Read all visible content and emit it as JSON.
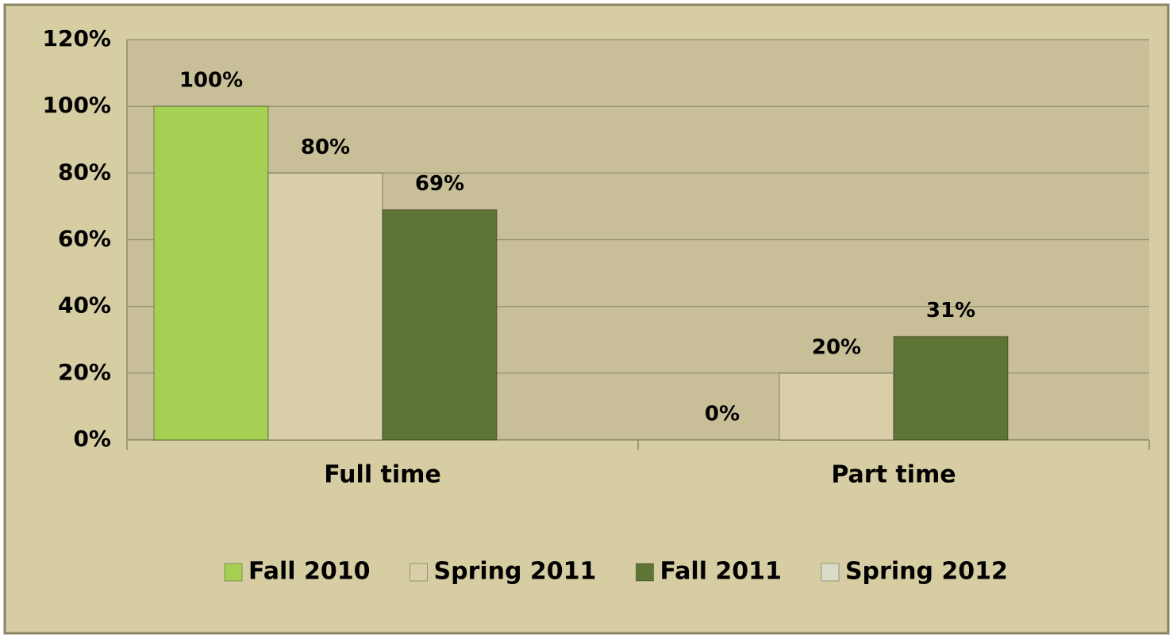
{
  "chart_data": {
    "type": "bar",
    "categories": [
      "Full time",
      "Part time"
    ],
    "series": [
      {
        "name": "Fall 2010",
        "color": "#a6d054",
        "values": [
          100,
          0
        ],
        "value_labels": [
          "100%",
          "0%"
        ]
      },
      {
        "name": "Spring 2011",
        "color": "#d8cfa8",
        "values": [
          80,
          20
        ],
        "value_labels": [
          "80%",
          "20%"
        ]
      },
      {
        "name": "Fall 2011",
        "color": "#5f7535",
        "values": [
          69,
          31
        ],
        "value_labels": [
          "69%",
          "31%"
        ]
      },
      {
        "name": "Spring 2012",
        "color": "#d9dcc6",
        "values": [
          null,
          null
        ],
        "value_labels": [
          null,
          null
        ]
      }
    ],
    "ylim": [
      0,
      120
    ],
    "yticks": [
      {
        "value": 0,
        "label": "0%"
      },
      {
        "value": 20,
        "label": "20%"
      },
      {
        "value": 40,
        "label": "40%"
      },
      {
        "value": 60,
        "label": "60%"
      },
      {
        "value": 80,
        "label": "80%"
      },
      {
        "value": 100,
        "label": "100%"
      },
      {
        "value": 120,
        "label": "120%"
      }
    ],
    "grid": true,
    "legend": "bottom"
  }
}
